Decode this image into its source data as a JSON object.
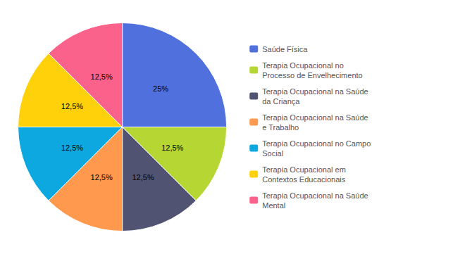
{
  "chart_data": {
    "type": "pie",
    "categories": [
      "Saúde Física",
      "Terapia Ocupacional no\nProcesso de Envelhecimento",
      "Terapia Ocupacional na Saúde\nda Criança",
      "Terapia Ocupacional na Saúde\ne Trabalho",
      "Terapia Ocupacional no Campo\nSocial",
      "Terapia Ocupacional em\nContextos Educacionais",
      "Terapia Ocupacional na Saúde\nMental"
    ],
    "values": [
      25,
      12.5,
      12.5,
      12.5,
      12.5,
      12.5,
      12.5
    ],
    "value_labels": [
      "25%",
      "12,5%",
      "12,5%",
      "12,5%",
      "12,5%",
      "12,5%",
      "12,5%"
    ],
    "data_labels": true,
    "legend": "right"
  }
}
